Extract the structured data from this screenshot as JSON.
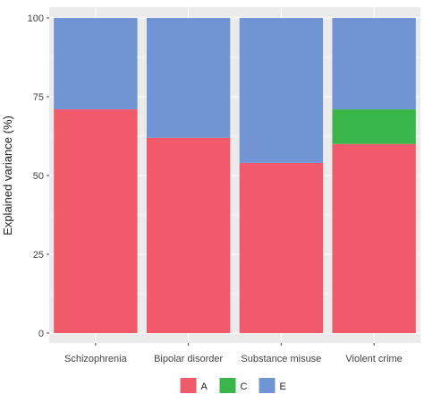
{
  "chart_data": {
    "type": "bar",
    "stacked": true,
    "categories": [
      "Schizophrenia",
      "Bipolar disorder",
      "Substance misuse",
      "Violent crime"
    ],
    "series": [
      {
        "name": "A",
        "color": "#F15A6A",
        "values": [
          71,
          62,
          54,
          60
        ]
      },
      {
        "name": "C",
        "color": "#39B54A",
        "values": [
          0,
          0,
          0,
          11
        ]
      },
      {
        "name": "E",
        "color": "#7195D4",
        "values": [
          29,
          38,
          46,
          29
        ]
      }
    ],
    "title": "",
    "xlabel": "",
    "ylabel": "Explained variance (%)",
    "ylim": [
      0,
      100
    ],
    "yticks": [
      0,
      25,
      50,
      75,
      100
    ],
    "grid": true,
    "legend_position": "bottom",
    "panel_background": "#EBEBEB"
  }
}
